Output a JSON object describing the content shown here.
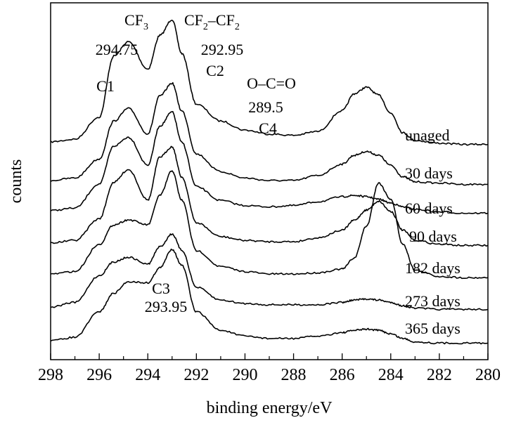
{
  "chart_data": {
    "type": "line",
    "xlabel": "binding energy/eV",
    "ylabel": "counts",
    "xlim": [
      298,
      280
    ],
    "x_reversed": true,
    "x_ticks": [
      "298",
      "296",
      "294",
      "292",
      "290",
      "288",
      "286",
      "284",
      "282",
      "280"
    ],
    "y_ticks_shown": false,
    "legend": "inline labels at right of each trace",
    "series": [
      {
        "name": "unaged",
        "x": [
          298,
          297,
          296,
          295.4,
          294.8,
          294.0,
          293.5,
          293.0,
          292.6,
          292.0,
          291.0,
          290.0,
          289.0,
          288.0,
          287.0,
          286.0,
          285.5,
          285.0,
          284.5,
          284.0,
          283.5,
          283.0,
          282.0,
          281.0,
          280.0
        ],
        "y": [
          0.06,
          0.08,
          0.25,
          0.72,
          0.83,
          0.62,
          0.88,
          1.0,
          0.74,
          0.35,
          0.22,
          0.15,
          0.12,
          0.11,
          0.14,
          0.3,
          0.43,
          0.48,
          0.42,
          0.28,
          0.13,
          0.07,
          0.05,
          0.04,
          0.04
        ]
      },
      {
        "name": "30 days",
        "x": [
          298,
          297,
          296,
          295.4,
          294.8,
          294.0,
          293.5,
          293.0,
          292.6,
          292.0,
          291.0,
          290.0,
          289.0,
          288.0,
          287.0,
          286.0,
          285.5,
          285.0,
          284.5,
          284.0,
          283.5,
          283.0,
          282.0,
          281.0,
          280.0
        ],
        "y": [
          0.05,
          0.07,
          0.22,
          0.52,
          0.62,
          0.42,
          0.72,
          0.82,
          0.6,
          0.26,
          0.12,
          0.07,
          0.05,
          0.05,
          0.09,
          0.18,
          0.25,
          0.28,
          0.25,
          0.17,
          0.08,
          0.04,
          0.03,
          0.02,
          0.02
        ]
      },
      {
        "name": "60 days",
        "x": [
          298,
          297,
          296,
          295.4,
          294.8,
          294.0,
          293.5,
          293.0,
          292.6,
          292.0,
          291.0,
          290.0,
          289.0,
          288.0,
          287.0,
          286.0,
          285.5,
          285.0,
          284.5,
          284.0,
          283.5,
          283.0,
          282.0,
          281.0,
          280.0
        ],
        "y": [
          0.04,
          0.06,
          0.25,
          0.55,
          0.62,
          0.4,
          0.71,
          0.82,
          0.58,
          0.23,
          0.12,
          0.08,
          0.07,
          0.08,
          0.11,
          0.15,
          0.16,
          0.15,
          0.13,
          0.1,
          0.07,
          0.05,
          0.03,
          0.02,
          0.02
        ]
      },
      {
        "name": "90 days",
        "x": [
          298,
          297,
          296,
          295.4,
          294.8,
          294.0,
          293.5,
          293.0,
          292.6,
          292.0,
          291.0,
          290.0,
          289.0,
          288.0,
          287.0,
          286.0,
          285.5,
          285.0,
          284.5,
          284.0,
          283.5,
          283.0,
          282.0,
          281.0,
          280.0
        ],
        "y": [
          0.04,
          0.06,
          0.23,
          0.52,
          0.62,
          0.38,
          0.72,
          0.8,
          0.56,
          0.2,
          0.09,
          0.06,
          0.05,
          0.05,
          0.08,
          0.14,
          0.22,
          0.3,
          0.37,
          0.29,
          0.14,
          0.06,
          0.03,
          0.02,
          0.02
        ]
      },
      {
        "name": "182 days",
        "x": [
          298,
          297,
          296,
          295.4,
          294.8,
          294.0,
          293.5,
          293.0,
          292.6,
          292.0,
          291.0,
          290.0,
          289.0,
          288.0,
          287.0,
          286.0,
          285.5,
          285.0,
          284.5,
          284.0,
          283.5,
          283.0,
          282.0,
          281.0,
          280.0
        ],
        "y": [
          0.04,
          0.06,
          0.28,
          0.44,
          0.48,
          0.44,
          0.68,
          0.88,
          0.64,
          0.23,
          0.1,
          0.06,
          0.04,
          0.04,
          0.05,
          0.08,
          0.17,
          0.43,
          0.78,
          0.65,
          0.28,
          0.07,
          0.02,
          0.01,
          0.01
        ]
      },
      {
        "name": "273 days",
        "x": [
          298,
          297,
          296,
          295.4,
          294.8,
          294.0,
          293.5,
          293.0,
          292.6,
          292.0,
          291.0,
          290.0,
          289.0,
          288.0,
          287.0,
          286.0,
          285.5,
          285.0,
          284.5,
          284.0,
          283.5,
          283.0,
          282.0,
          281.0,
          280.0
        ],
        "y": [
          0.03,
          0.07,
          0.3,
          0.42,
          0.46,
          0.4,
          0.55,
          0.66,
          0.52,
          0.2,
          0.09,
          0.06,
          0.05,
          0.05,
          0.05,
          0.07,
          0.09,
          0.1,
          0.09,
          0.07,
          0.04,
          0.02,
          0.01,
          0.01,
          0.01
        ]
      },
      {
        "name": "365 days",
        "x": [
          298,
          297,
          296,
          295.4,
          294.8,
          294.0,
          293.5,
          293.0,
          292.6,
          292.0,
          291.0,
          290.0,
          289.0,
          288.0,
          287.0,
          286.0,
          285.5,
          285.0,
          284.5,
          284.0,
          283.5,
          283.0,
          282.0,
          281.0,
          280.0
        ],
        "y": [
          0.03,
          0.06,
          0.28,
          0.44,
          0.54,
          0.53,
          0.66,
          0.82,
          0.68,
          0.28,
          0.12,
          0.07,
          0.05,
          0.05,
          0.07,
          0.1,
          0.12,
          0.13,
          0.12,
          0.09,
          0.05,
          0.02,
          0.01,
          0.01,
          0.01
        ]
      }
    ],
    "annotations": [
      {
        "id": "cf3",
        "text": "CF",
        "sub": "3",
        "x": 295.1
      },
      {
        "id": "cf3-value",
        "text": "294.75",
        "x": 295.0
      },
      {
        "id": "cf2",
        "text": "CF",
        "sub": "2",
        "text2": "–CF",
        "sub2": "2",
        "x": 291.9
      },
      {
        "id": "cf2-value",
        "text": "292.95",
        "x": 291.9
      },
      {
        "id": "c1",
        "text": "C1",
        "x": 296.5
      },
      {
        "id": "c2",
        "text": "C2",
        "x": 291.2
      },
      {
        "id": "ococ",
        "text": "O–C=O",
        "x": 288.8
      },
      {
        "id": "ococ-value",
        "text": "289.5",
        "x": 288.8
      },
      {
        "id": "c4",
        "text": "C4",
        "x": 288.6
      },
      {
        "id": "c3",
        "text": "C3",
        "x": 294.5
      },
      {
        "id": "c3-value",
        "text": "293.95",
        "x": 293.8
      }
    ]
  }
}
